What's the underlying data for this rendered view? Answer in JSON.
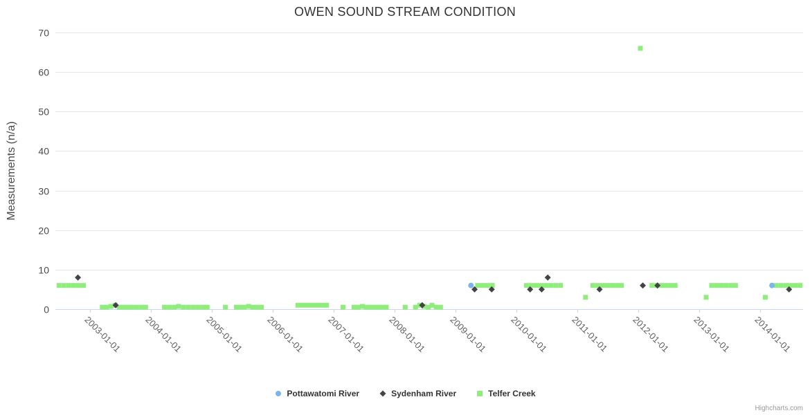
{
  "credits": "Highcharts.com",
  "chart_data": {
    "type": "scatter",
    "title": "OWEN SOUND STREAM CONDITION",
    "xlabel": "",
    "ylabel": "Measurements (n/a)",
    "ylim": [
      0,
      70
    ],
    "yticks": [
      0,
      10,
      20,
      30,
      40,
      50,
      60,
      70
    ],
    "xlim": [
      2002.43,
      2014.7
    ],
    "xticks": [
      {
        "value": 2003,
        "label": "2003-01-01"
      },
      {
        "value": 2004,
        "label": "2004-01-01"
      },
      {
        "value": 2005,
        "label": "2005-01-01"
      },
      {
        "value": 2006,
        "label": "2006-01-01"
      },
      {
        "value": 2007,
        "label": "2007-01-01"
      },
      {
        "value": 2008,
        "label": "2008-01-01"
      },
      {
        "value": 2009,
        "label": "2009-01-01"
      },
      {
        "value": 2010,
        "label": "2010-01-01"
      },
      {
        "value": 2011,
        "label": "2011-01-01"
      },
      {
        "value": 2012,
        "label": "2012-01-01"
      },
      {
        "value": 2013,
        "label": "2013-01-01"
      },
      {
        "value": 2014,
        "label": "2014-01-01"
      }
    ],
    "grid": true,
    "legend_position": "bottom",
    "colors": {
      "grid": "#e6e6e6",
      "axis_line": "#ccd6eb",
      "y_label": "#4a4a4a",
      "x_label": "#606060",
      "axis_title": "#4a4a4a"
    },
    "series": [
      {
        "name": "Pottawatomi River",
        "marker": "circle",
        "color": "#7cb5ec",
        "points": [
          [
            2009.25,
            6
          ],
          [
            2014.19,
            6
          ]
        ]
      },
      {
        "name": "Sydenham River",
        "marker": "diamond",
        "color": "#434348",
        "points": [
          [
            2002.8,
            8
          ],
          [
            2003.42,
            1
          ],
          [
            2008.45,
            1
          ],
          [
            2009.31,
            5
          ],
          [
            2009.59,
            5
          ],
          [
            2010.22,
            5
          ],
          [
            2010.41,
            5
          ],
          [
            2010.51,
            8
          ],
          [
            2011.36,
            5
          ],
          [
            2012.07,
            6
          ],
          [
            2012.31,
            6
          ],
          [
            2014.47,
            5
          ]
        ]
      },
      {
        "name": "Telfer Creek",
        "marker": "square",
        "color": "#90ed7d",
        "points": [
          [
            2002.49,
            6
          ],
          [
            2002.57,
            6
          ],
          [
            2002.65,
            6
          ],
          [
            2002.73,
            6
          ],
          [
            2002.81,
            6
          ],
          [
            2002.89,
            6
          ],
          [
            2003.2,
            0.5
          ],
          [
            2003.27,
            0.5
          ],
          [
            2003.34,
            0.7
          ],
          [
            2003.41,
            1
          ],
          [
            2003.48,
            0.5
          ],
          [
            2003.55,
            0.5
          ],
          [
            2003.61,
            0.5
          ],
          [
            2003.68,
            0.5
          ],
          [
            2003.76,
            0.5
          ],
          [
            2003.84,
            0.5
          ],
          [
            2003.91,
            0.5
          ],
          [
            2004.22,
            0.5
          ],
          [
            2004.3,
            0.5
          ],
          [
            2004.38,
            0.5
          ],
          [
            2004.45,
            0.7
          ],
          [
            2004.53,
            0.5
          ],
          [
            2004.61,
            0.5
          ],
          [
            2004.69,
            0.5
          ],
          [
            2004.77,
            0.5
          ],
          [
            2004.85,
            0.5
          ],
          [
            2004.92,
            0.5
          ],
          [
            2005.22,
            0.5
          ],
          [
            2005.4,
            0.5
          ],
          [
            2005.47,
            0.5
          ],
          [
            2005.53,
            0.5
          ],
          [
            2005.6,
            0.7
          ],
          [
            2005.67,
            0.5
          ],
          [
            2005.74,
            0.5
          ],
          [
            2005.81,
            0.5
          ],
          [
            2006.41,
            1
          ],
          [
            2006.48,
            1
          ],
          [
            2006.55,
            1
          ],
          [
            2006.61,
            1
          ],
          [
            2006.68,
            1
          ],
          [
            2006.75,
            1
          ],
          [
            2006.82,
            1
          ],
          [
            2006.88,
            1
          ],
          [
            2007.15,
            0.5
          ],
          [
            2007.33,
            0.5
          ],
          [
            2007.4,
            0.5
          ],
          [
            2007.47,
            0.7
          ],
          [
            2007.53,
            0.5
          ],
          [
            2007.6,
            0.5
          ],
          [
            2007.67,
            0.5
          ],
          [
            2007.74,
            0.5
          ],
          [
            2007.81,
            0.5
          ],
          [
            2007.86,
            0.5
          ],
          [
            2008.17,
            0.5
          ],
          [
            2008.34,
            0.5
          ],
          [
            2008.41,
            1
          ],
          [
            2008.48,
            0.7
          ],
          [
            2008.55,
            0.5
          ],
          [
            2008.61,
            1
          ],
          [
            2008.68,
            0.5
          ],
          [
            2008.75,
            0.5
          ],
          [
            2009.36,
            6
          ],
          [
            2009.44,
            6
          ],
          [
            2009.52,
            6
          ],
          [
            2009.6,
            6
          ],
          [
            2010.16,
            6
          ],
          [
            2010.24,
            6
          ],
          [
            2010.32,
            6
          ],
          [
            2010.4,
            6
          ],
          [
            2010.48,
            6
          ],
          [
            2010.56,
            6
          ],
          [
            2010.64,
            6
          ],
          [
            2010.72,
            6
          ],
          [
            2011.13,
            3
          ],
          [
            2011.25,
            6
          ],
          [
            2011.33,
            6
          ],
          [
            2011.41,
            6
          ],
          [
            2011.49,
            6
          ],
          [
            2011.57,
            6
          ],
          [
            2011.65,
            6
          ],
          [
            2011.72,
            6
          ],
          [
            2012.03,
            66
          ],
          [
            2012.22,
            6
          ],
          [
            2012.3,
            6
          ],
          [
            2012.38,
            6
          ],
          [
            2012.45,
            6
          ],
          [
            2012.53,
            6
          ],
          [
            2012.6,
            6
          ],
          [
            2013.11,
            3
          ],
          [
            2013.2,
            6
          ],
          [
            2013.28,
            6
          ],
          [
            2013.36,
            6
          ],
          [
            2013.44,
            6
          ],
          [
            2013.52,
            6
          ],
          [
            2013.59,
            6
          ],
          [
            2014.08,
            3
          ],
          [
            2014.26,
            6
          ],
          [
            2014.34,
            6
          ],
          [
            2014.42,
            6
          ],
          [
            2014.49,
            6
          ],
          [
            2014.57,
            6
          ],
          [
            2014.65,
            6
          ]
        ]
      }
    ]
  }
}
